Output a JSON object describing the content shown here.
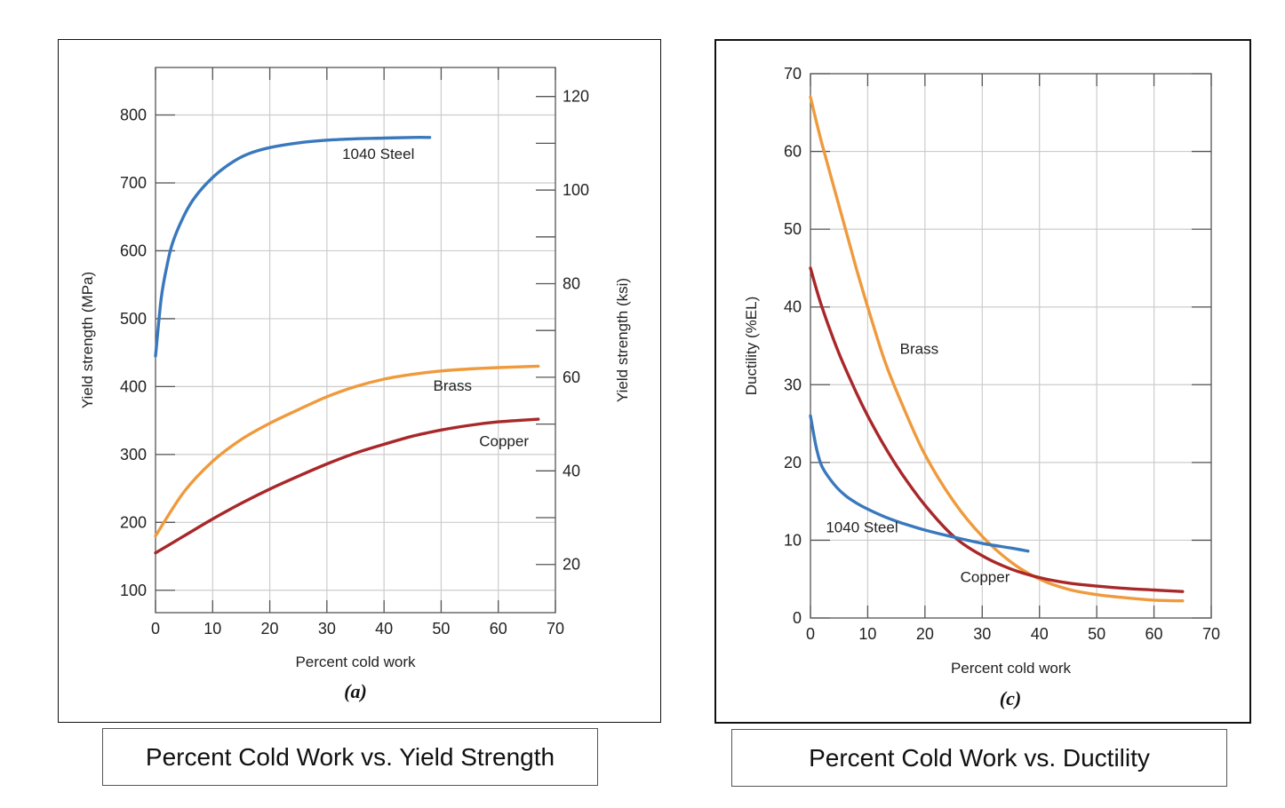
{
  "captions": {
    "a": "Percent Cold Work vs. Yield Strength",
    "c": "Percent Cold Work vs. Ductility"
  },
  "colors": {
    "steel": "#3a78bd",
    "brass": "#ef9a3c",
    "copper": "#a8282a",
    "grid": "#cccccc",
    "frame": "#555555"
  },
  "chart_data": [
    {
      "id": "a",
      "type": "line",
      "sublabel": "(a)",
      "xlabel": "Percent cold work",
      "ylabel": "Yield strength (MPa)",
      "y2label": "Yield strength (ksi)",
      "xlim": [
        0,
        70
      ],
      "ylim": [
        67,
        870
      ],
      "y2lim": [
        9.7,
        126.2
      ],
      "xticks": [
        0,
        10,
        20,
        30,
        40,
        50,
        60,
        70
      ],
      "yticks": [
        100,
        200,
        300,
        400,
        500,
        600,
        700,
        800
      ],
      "y2ticks": [
        20,
        40,
        60,
        80,
        100,
        120
      ],
      "grid": true,
      "series": [
        {
          "name": "1040 Steel",
          "color": "#3a78bd",
          "points": [
            [
              0,
              445
            ],
            [
              1,
              530
            ],
            [
              2,
              578
            ],
            [
              3,
              612
            ],
            [
              5,
              652
            ],
            [
              7,
              680
            ],
            [
              10,
              708
            ],
            [
              13,
              728
            ],
            [
              16,
              742
            ],
            [
              20,
              752
            ],
            [
              25,
              759
            ],
            [
              30,
              763
            ],
            [
              35,
              765
            ],
            [
              40,
              766
            ],
            [
              45,
              767
            ],
            [
              48,
              767
            ]
          ],
          "label_at": [
            39,
            735
          ]
        },
        {
          "name": "Brass",
          "color": "#ef9a3c",
          "points": [
            [
              0,
              180
            ],
            [
              5,
              245
            ],
            [
              10,
              290
            ],
            [
              15,
              322
            ],
            [
              20,
              346
            ],
            [
              25,
              366
            ],
            [
              30,
              385
            ],
            [
              35,
              400
            ],
            [
              40,
              411
            ],
            [
              45,
              418
            ],
            [
              50,
              423
            ],
            [
              55,
              426
            ],
            [
              60,
              428
            ],
            [
              67,
              430
            ]
          ],
          "label_at": [
            52,
            394
          ]
        },
        {
          "name": "Copper",
          "color": "#a8282a",
          "points": [
            [
              0,
              155
            ],
            [
              5,
              180
            ],
            [
              10,
              205
            ],
            [
              15,
              228
            ],
            [
              20,
              249
            ],
            [
              25,
              268
            ],
            [
              30,
              286
            ],
            [
              35,
              302
            ],
            [
              40,
              315
            ],
            [
              45,
              327
            ],
            [
              50,
              336
            ],
            [
              55,
              343
            ],
            [
              60,
              348
            ],
            [
              67,
              352
            ]
          ],
          "label_at": [
            61,
            312
          ]
        }
      ]
    },
    {
      "id": "c",
      "type": "line",
      "sublabel": "(c)",
      "xlabel": "Percent cold work",
      "ylabel": "Ductility (%EL)",
      "xlim": [
        0,
        70
      ],
      "ylim": [
        0,
        70
      ],
      "xticks": [
        0,
        10,
        20,
        30,
        40,
        50,
        60,
        70
      ],
      "yticks": [
        0,
        10,
        20,
        30,
        40,
        50,
        60,
        70
      ],
      "grid": true,
      "series": [
        {
          "name": "Brass",
          "color": "#ef9a3c",
          "points": [
            [
              0,
              67
            ],
            [
              2,
              61
            ],
            [
              5,
              53
            ],
            [
              8,
              45
            ],
            [
              10,
              40
            ],
            [
              13,
              33
            ],
            [
              16,
              27.5
            ],
            [
              20,
              21
            ],
            [
              25,
              15
            ],
            [
              30,
              10.5
            ],
            [
              35,
              7.2
            ],
            [
              40,
              5
            ],
            [
              45,
              3.7
            ],
            [
              50,
              3
            ],
            [
              55,
              2.6
            ],
            [
              60,
              2.3
            ],
            [
              65,
              2.2
            ]
          ],
          "label_at": [
            19,
            34
          ]
        },
        {
          "name": "Copper",
          "color": "#a8282a",
          "points": [
            [
              0,
              45
            ],
            [
              2,
              40
            ],
            [
              5,
              34
            ],
            [
              8,
              29
            ],
            [
              10,
              26
            ],
            [
              13,
              22
            ],
            [
              16,
              18.5
            ],
            [
              20,
              14.5
            ],
            [
              25,
              10.5
            ],
            [
              30,
              8
            ],
            [
              35,
              6.3
            ],
            [
              40,
              5.2
            ],
            [
              45,
              4.5
            ],
            [
              50,
              4.1
            ],
            [
              55,
              3.8
            ],
            [
              60,
              3.6
            ],
            [
              65,
              3.4
            ]
          ],
          "label_at": [
            30.5,
            4.6
          ]
        },
        {
          "name": "1040 Steel",
          "color": "#3a78bd",
          "points": [
            [
              0,
              26
            ],
            [
              1,
              22
            ],
            [
              2,
              19.5
            ],
            [
              4,
              17.3
            ],
            [
              6,
              15.8
            ],
            [
              8,
              14.8
            ],
            [
              10,
              14
            ],
            [
              13,
              13
            ],
            [
              16,
              12.2
            ],
            [
              20,
              11.3
            ],
            [
              25,
              10.4
            ],
            [
              30,
              9.6
            ],
            [
              35,
              9
            ],
            [
              38,
              8.6
            ]
          ],
          "label_at": [
            9,
            11
          ]
        }
      ]
    }
  ]
}
